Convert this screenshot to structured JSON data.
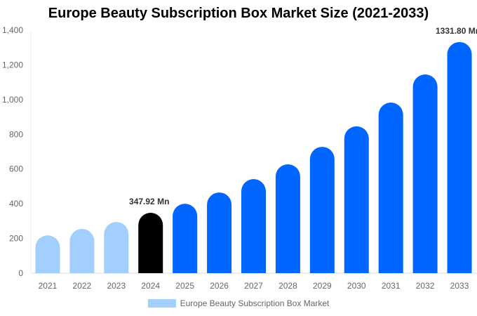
{
  "chart_data": {
    "type": "bar",
    "title": "Europe Beauty Subscription Box Market Size (2021-2033)",
    "categories": [
      "2021",
      "2022",
      "2023",
      "2024",
      "2025",
      "2026",
      "2027",
      "2028",
      "2029",
      "2030",
      "2031",
      "2032",
      "2033"
    ],
    "series": [
      {
        "name": "Europe Beauty Subscription Box Market",
        "values": [
          218,
          255,
          295,
          347.92,
          400,
          465,
          542,
          627,
          728,
          846,
          983,
          1145,
          1331.8
        ]
      }
    ],
    "bar_colors": [
      "#a3cfff",
      "#a3cfff",
      "#a3cfff",
      "#000000",
      "#0066ff",
      "#0066ff",
      "#0066ff",
      "#0066ff",
      "#0066ff",
      "#0066ff",
      "#0066ff",
      "#0066ff",
      "#0066ff"
    ],
    "data_labels": {
      "3": "347.92 Mn",
      "12": "1331.80 Mn"
    },
    "ylim": [
      0,
      1400
    ],
    "yticks": [
      "0",
      "200",
      "400",
      "600",
      "800",
      "1,000",
      "1,200",
      "1,400"
    ],
    "ytick_values": [
      0,
      200,
      400,
      600,
      800,
      1000,
      1200,
      1400
    ],
    "grid": false,
    "legend": "bottom",
    "xlabel": "",
    "ylabel": ""
  }
}
